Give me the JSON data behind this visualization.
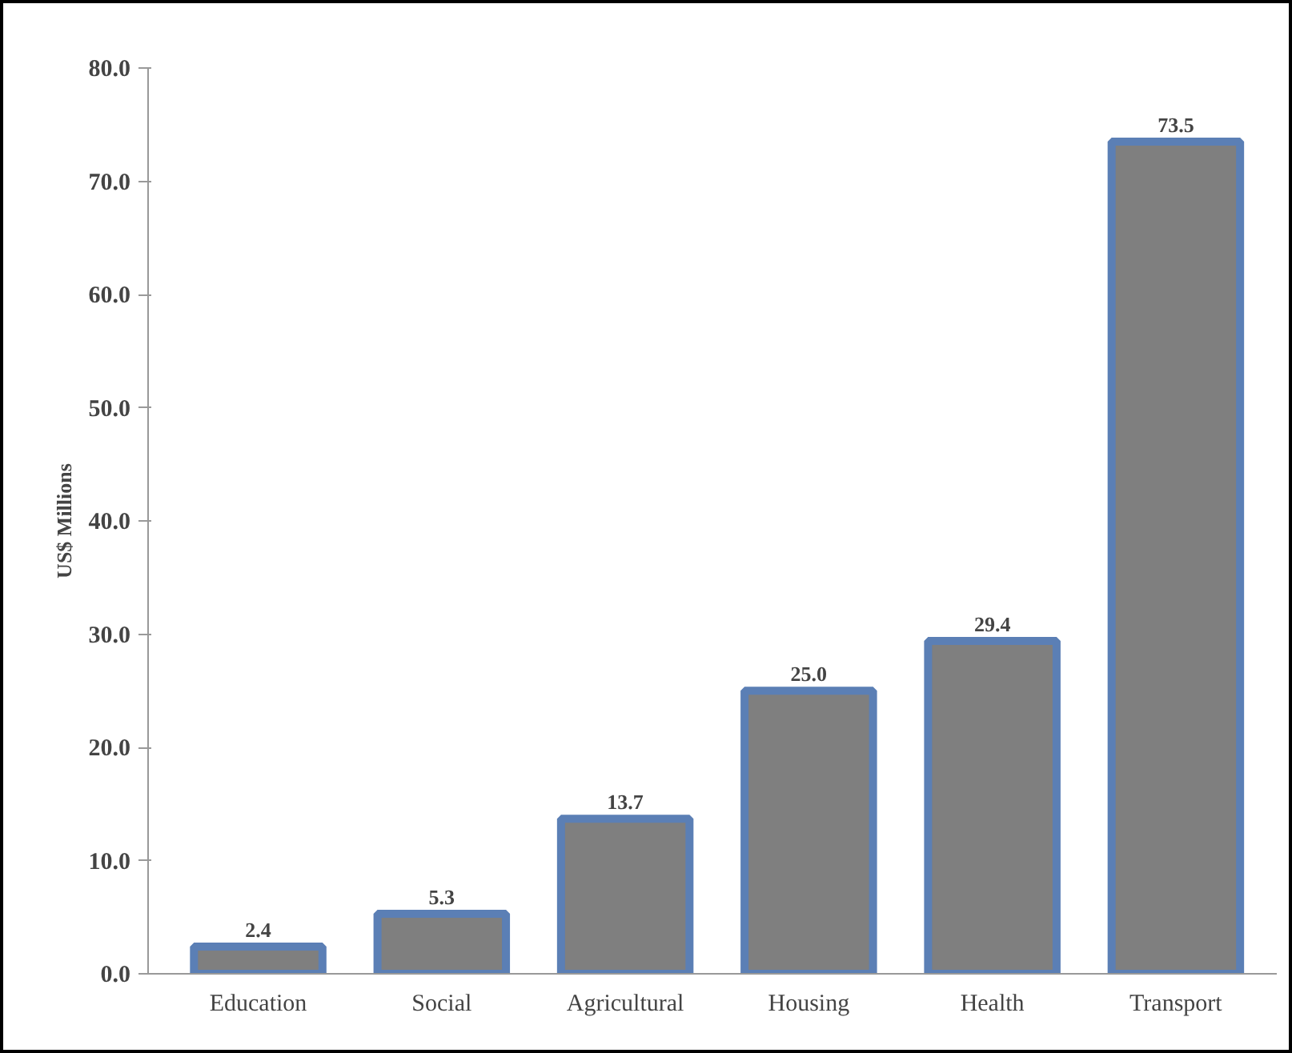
{
  "chart_data": {
    "type": "bar",
    "ylabel": "US$ Millions",
    "categories": [
      "Education",
      "Social",
      "Agricultural",
      "Housing",
      "Health",
      "Transport"
    ],
    "values": [
      2.4,
      5.3,
      13.7,
      25.0,
      29.4,
      73.5
    ],
    "value_labels": [
      "2.4",
      "5.3",
      "13.7",
      "25.0",
      "29.4",
      "73.5"
    ],
    "color": "#7f7f7f",
    "ylim": [
      0,
      80
    ],
    "yticks": [
      {
        "value": 0,
        "label": "0.0"
      },
      {
        "value": 10,
        "label": "10.0"
      },
      {
        "value": 20,
        "label": "20.0"
      },
      {
        "value": 30,
        "label": "30.0"
      },
      {
        "value": 40,
        "label": "40.0"
      },
      {
        "value": 50,
        "label": "50.0"
      },
      {
        "value": 60,
        "label": "60.0"
      },
      {
        "value": 70,
        "label": "70.0"
      },
      {
        "value": 80,
        "label": "80.0"
      }
    ],
    "grid": false
  }
}
